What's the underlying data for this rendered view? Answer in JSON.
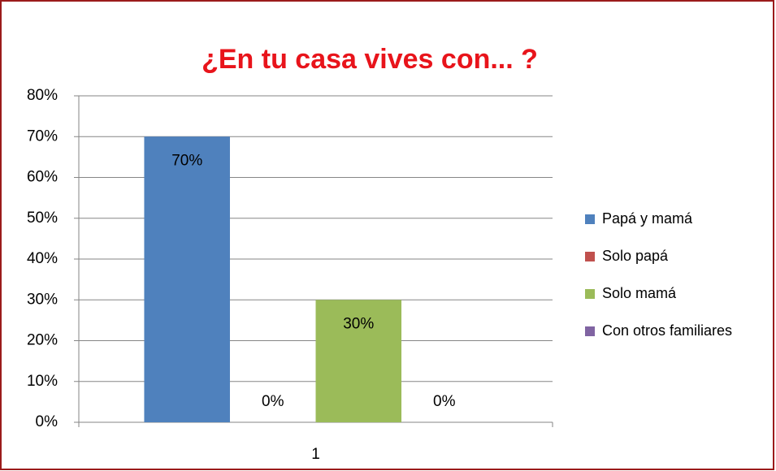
{
  "chart_data": {
    "type": "bar",
    "title": "¿En tu casa vives con... ?",
    "categories": [
      "1"
    ],
    "series": [
      {
        "name": "Papá y mamá",
        "color": "#4f81bd",
        "values": [
          70
        ],
        "value_labels": [
          "70%"
        ]
      },
      {
        "name": "Solo papá",
        "color": "#c0504d",
        "values": [
          0
        ],
        "value_labels": [
          "0%"
        ]
      },
      {
        "name": "Solo mamá",
        "color": "#9bbb59",
        "values": [
          30
        ],
        "value_labels": [
          "30%"
        ]
      },
      {
        "name": "Con otros familiares",
        "color": "#8064a2",
        "values": [
          0
        ],
        "value_labels": [
          "0%"
        ]
      }
    ],
    "ylim": [
      0,
      80
    ],
    "yticks": [
      {
        "value": 0,
        "label": "0%"
      },
      {
        "value": 10,
        "label": "10%"
      },
      {
        "value": 20,
        "label": "20%"
      },
      {
        "value": 30,
        "label": "30%"
      },
      {
        "value": 40,
        "label": "40%"
      },
      {
        "value": 50,
        "label": "50%"
      },
      {
        "value": 60,
        "label": "60%"
      },
      {
        "value": 70,
        "label": "70%"
      },
      {
        "value": 80,
        "label": "80%"
      }
    ],
    "grid": true,
    "legend": "right"
  }
}
